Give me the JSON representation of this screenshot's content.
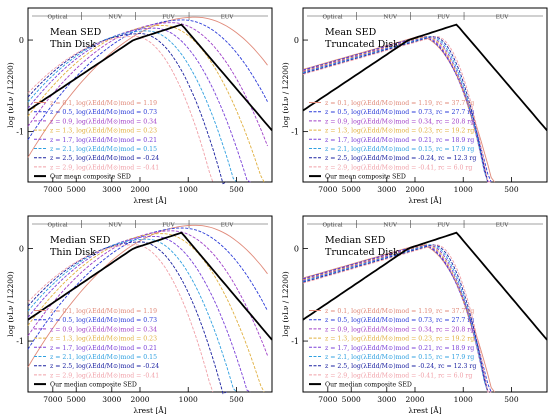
{
  "chart_data": [
    {
      "type": "line",
      "panel": "top-left",
      "title_lines": [
        "Mean SED",
        "Thin Disk"
      ],
      "xlabel": "λrest [Å]",
      "ylabel": "log (νLν / L2200)",
      "xticks": [
        "7000",
        "5000",
        "3000",
        "2000",
        "1000",
        "500"
      ],
      "yticks": [
        "0",
        "-1"
      ],
      "band_labels": [
        "Optical",
        "NUV",
        "FUV",
        "EUV"
      ],
      "composite_label": "Our mean composite SED",
      "legend": [
        {
          "z": "z = 0.1,",
          "edd": "log(λEdd/M⊙)mod = 1.19",
          "color": "#e08a7a"
        },
        {
          "z": "z = 0.5,",
          "edd": "log(λEdd/M⊙)mod = 0.73",
          "color": "#2a3ad8"
        },
        {
          "z": "z = 0.9,",
          "edd": "log(λEdd/M⊙)mod = 0.34",
          "color": "#a040c8"
        },
        {
          "z": "z = 1.3,",
          "edd": "log(λEdd/M⊙)mod = 0.23",
          "color": "#e0b040"
        },
        {
          "z": "z = 1.7,",
          "edd": "log(λEdd/M⊙)mod = 0.21",
          "color": "#7a40d8"
        },
        {
          "z": "z = 2.1,",
          "edd": "log(λEdd/M⊙)mod = 0.15",
          "color": "#30a0e0"
        },
        {
          "z": "z = 2.5,",
          "edd": "log(λEdd/M⊙)mod = -0.24",
          "color": "#1a20a0"
        },
        {
          "z": "z = 2.9,",
          "edd": "log(λEdd/M⊙)mod = -0.41",
          "color": "#f0a0a8"
        }
      ]
    },
    {
      "type": "line",
      "panel": "top-right",
      "title_lines": [
        "Mean SED",
        "Truncated Disk"
      ],
      "xlabel": "λrest [Å]",
      "ylabel": "log (νLν / L2200)",
      "xticks": [
        "7000",
        "5000",
        "3000",
        "2000",
        "1000",
        "500"
      ],
      "yticks": [
        "0",
        "-1"
      ],
      "band_labels": [
        "Optical",
        "NUV",
        "FUV",
        "EUV"
      ],
      "composite_label": "Our mean composite SED",
      "legend": [
        {
          "z": "z = 0.1,",
          "edd": "log(λEdd/M⊙)mod = 1.19,",
          "r": "rc = 37.7 rg",
          "color": "#e08a7a"
        },
        {
          "z": "z = 0.5,",
          "edd": "log(λEdd/M⊙)mod = 0.73,",
          "r": "rc = 27.7 rg",
          "color": "#2a3ad8"
        },
        {
          "z": "z = 0.9,",
          "edd": "log(λEdd/M⊙)mod = 0.34,",
          "r": "rc = 20.8 rg",
          "color": "#a040c8"
        },
        {
          "z": "z = 1.3,",
          "edd": "log(λEdd/M⊙)mod = 0.23,",
          "r": "rc = 19.2 rg",
          "color": "#e0b040"
        },
        {
          "z": "z = 1.7,",
          "edd": "log(λEdd/M⊙)mod = 0.21,",
          "r": "rc = 18.9 rg",
          "color": "#7a40d8"
        },
        {
          "z": "z = 2.1,",
          "edd": "log(λEdd/M⊙)mod = 0.15,",
          "r": "rc = 17.9 rg",
          "color": "#30a0e0"
        },
        {
          "z": "z = 2.5,",
          "edd": "log(λEdd/M⊙)mod = -0.24,",
          "r": "rc = 12.3 rg",
          "color": "#1a20a0"
        },
        {
          "z": "z = 2.9,",
          "edd": "log(λEdd/M⊙)mod = -0.41,",
          "r": "rc = 6.0 rg",
          "color": "#f0a0a8"
        }
      ]
    },
    {
      "type": "line",
      "panel": "bottom-left",
      "title_lines": [
        "Median SED",
        "Thin Disk"
      ],
      "xlabel": "λrest [Å]",
      "ylabel": "log (νLν / L2200)",
      "xticks": [
        "7000",
        "5000",
        "3000",
        "2000",
        "1000",
        "500"
      ],
      "yticks": [
        "0",
        "-1"
      ],
      "band_labels": [
        "Optical",
        "NUV",
        "FUV",
        "EUV"
      ],
      "composite_label": "Our median composite SED",
      "legend": [
        {
          "z": "z = 0.1,",
          "edd": "log(λEdd/M⊙)mod = 1.19",
          "color": "#e08a7a"
        },
        {
          "z": "z = 0.5,",
          "edd": "log(λEdd/M⊙)mod = 0.73",
          "color": "#2a3ad8"
        },
        {
          "z": "z = 0.9,",
          "edd": "log(λEdd/M⊙)mod = 0.34",
          "color": "#a040c8"
        },
        {
          "z": "z = 1.3,",
          "edd": "log(λEdd/M⊙)mod = 0.23",
          "color": "#e0b040"
        },
        {
          "z": "z = 1.7,",
          "edd": "log(λEdd/M⊙)mod = 0.21",
          "color": "#7a40d8"
        },
        {
          "z": "z = 2.1,",
          "edd": "log(λEdd/M⊙)mod = 0.15",
          "color": "#30a0e0"
        },
        {
          "z": "z = 2.5,",
          "edd": "log(λEdd/M⊙)mod = -0.24",
          "color": "#1a20a0"
        },
        {
          "z": "z = 2.9,",
          "edd": "log(λEdd/M⊙)mod = -0.41",
          "color": "#f0a0a8"
        }
      ]
    },
    {
      "type": "line",
      "panel": "bottom-right",
      "title_lines": [
        "Median SED",
        "Truncated Disk"
      ],
      "xlabel": "λrest [Å]",
      "ylabel": "log (νLν / L2200)",
      "xticks": [
        "7000",
        "5000",
        "3000",
        "2000",
        "1000",
        "500"
      ],
      "yticks": [
        "0",
        "-1"
      ],
      "band_labels": [
        "Optical",
        "NUV",
        "FUV",
        "EUV"
      ],
      "composite_label": "Our median composite SED",
      "legend": [
        {
          "z": "z = 0.1,",
          "edd": "log(λEdd/M⊙)mod = 1.19,",
          "r": "rc = 37.7 rg",
          "color": "#e08a7a"
        },
        {
          "z": "z = 0.5,",
          "edd": "log(λEdd/M⊙)mod = 0.73,",
          "r": "rc = 27.7 rg",
          "color": "#2a3ad8"
        },
        {
          "z": "z = 0.9,",
          "edd": "log(λEdd/M⊙)mod = 0.34,",
          "r": "rc = 20.8 rg",
          "color": "#a040c8"
        },
        {
          "z": "z = 1.3,",
          "edd": "log(λEdd/M⊙)mod = 0.23,",
          "r": "rc = 19.2 rg",
          "color": "#e0b040"
        },
        {
          "z": "z = 1.7,",
          "edd": "log(λEdd/M⊙)mod = 0.21,",
          "r": "rc = 18.9 rg",
          "color": "#7a40d8"
        },
        {
          "z": "z = 2.1,",
          "edd": "log(λEdd/M⊙)mod = 0.15,",
          "r": "rc = 17.9 rg",
          "color": "#30a0e0"
        },
        {
          "z": "z = 2.5,",
          "edd": "log(λEdd/M⊙)mod = -0.24,",
          "r": "rc = 12.3 rg",
          "color": "#1a20a0"
        },
        {
          "z": "z = 2.9,",
          "edd": "log(λEdd/M⊙)mod = -0.41,",
          "r": "rc = 6.0 rg",
          "color": "#f0a0a8"
        }
      ]
    }
  ]
}
